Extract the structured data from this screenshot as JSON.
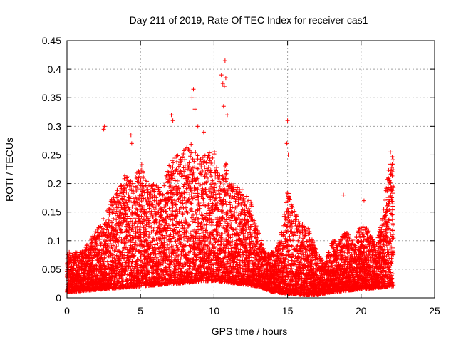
{
  "chart_data": {
    "type": "scatter",
    "title": "Day 211 of 2019, Rate Of TEC Index for receiver cas1",
    "xlabel": "GPS time / hours",
    "ylabel": "ROTI / TECUs",
    "xlim": [
      0,
      25
    ],
    "ylim": [
      0,
      0.45
    ],
    "xticks": [
      0,
      5,
      10,
      15,
      20,
      25
    ],
    "yticks": [
      0,
      0.05,
      0.1,
      0.15,
      0.2,
      0.25,
      0.3,
      0.35,
      0.4,
      0.45
    ],
    "xtick_labels": [
      "0",
      "5",
      "10",
      "15",
      "20",
      "25"
    ],
    "ytick_labels": [
      "0",
      "0.05",
      "0.1",
      "0.15",
      "0.2",
      "0.25",
      "0.3",
      "0.35",
      "0.4",
      "0.45"
    ],
    "grid": true,
    "marker": "+",
    "color": "#ff0000",
    "series": [
      {
        "name": "ROTI",
        "x_range": [
          0,
          22.2
        ],
        "sample_step_hours": 0.02,
        "envelope": {
          "description": "approximate upper envelope of the point cloud (hour, ROTI)",
          "x": [
            0,
            1,
            2,
            2.5,
            3,
            4,
            4.5,
            5,
            5.5,
            6,
            6.5,
            7,
            7.5,
            8,
            8.5,
            9,
            9.5,
            10,
            10.5,
            10.8,
            11,
            11.5,
            12,
            12.5,
            13,
            13.5,
            14,
            14.5,
            15,
            15.5,
            16,
            16.5,
            17,
            17.5,
            18,
            18.5,
            19,
            19.5,
            20,
            20.5,
            21,
            21.5,
            22,
            22.2
          ],
          "y": [
            0.08,
            0.08,
            0.12,
            0.14,
            0.17,
            0.22,
            0.2,
            0.24,
            0.2,
            0.2,
            0.19,
            0.24,
            0.25,
            0.26,
            0.27,
            0.25,
            0.25,
            0.26,
            0.2,
            0.24,
            0.2,
            0.2,
            0.19,
            0.17,
            0.12,
            0.08,
            0.08,
            0.1,
            0.19,
            0.15,
            0.13,
            0.12,
            0.08,
            0.06,
            0.1,
            0.1,
            0.12,
            0.1,
            0.13,
            0.12,
            0.09,
            0.15,
            0.25,
            0.25
          ]
        },
        "baseline": {
          "description": "approximate lower envelope / typical floor (hour, ROTI)",
          "x": [
            0,
            5,
            10,
            13,
            14,
            16,
            17,
            18,
            20,
            22.2
          ],
          "y": [
            0.01,
            0.02,
            0.03,
            0.02,
            0.01,
            0.005,
            0.005,
            0.01,
            0.015,
            0.02
          ]
        },
        "outliers": [
          {
            "x": 2.55,
            "y": 0.3
          },
          {
            "x": 2.5,
            "y": 0.295
          },
          {
            "x": 4.35,
            "y": 0.285
          },
          {
            "x": 4.4,
            "y": 0.27
          },
          {
            "x": 7.1,
            "y": 0.32
          },
          {
            "x": 7.2,
            "y": 0.31
          },
          {
            "x": 8.5,
            "y": 0.35
          },
          {
            "x": 8.6,
            "y": 0.365
          },
          {
            "x": 8.7,
            "y": 0.33
          },
          {
            "x": 8.9,
            "y": 0.3
          },
          {
            "x": 9.3,
            "y": 0.29
          },
          {
            "x": 10.5,
            "y": 0.39
          },
          {
            "x": 10.6,
            "y": 0.375
          },
          {
            "x": 10.7,
            "y": 0.37
          },
          {
            "x": 10.75,
            "y": 0.415
          },
          {
            "x": 10.8,
            "y": 0.385
          },
          {
            "x": 10.65,
            "y": 0.335
          },
          {
            "x": 10.9,
            "y": 0.32
          },
          {
            "x": 15.0,
            "y": 0.31
          },
          {
            "x": 14.95,
            "y": 0.27
          },
          {
            "x": 15.05,
            "y": 0.25
          },
          {
            "x": 18.8,
            "y": 0.18
          },
          {
            "x": 20.2,
            "y": 0.17
          },
          {
            "x": 22.0,
            "y": 0.255
          }
        ]
      }
    ]
  }
}
